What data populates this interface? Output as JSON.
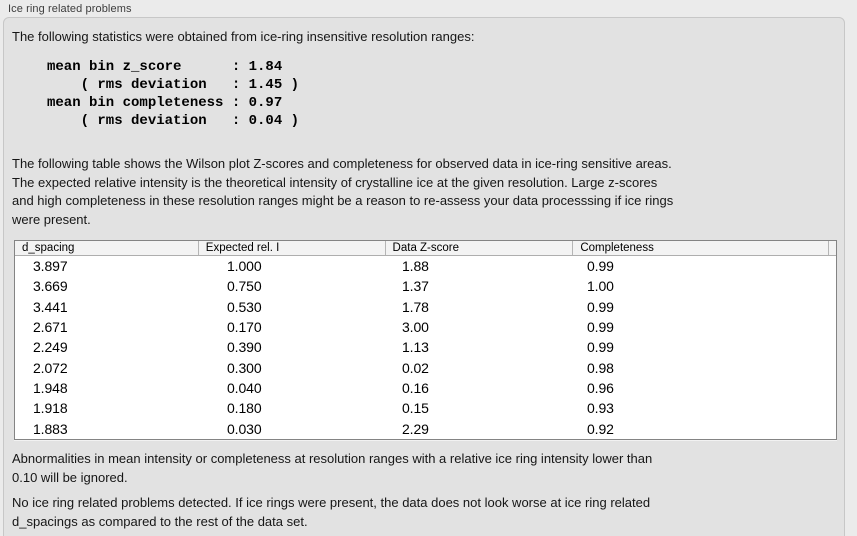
{
  "colors": {
    "outer_bg": "#ebebeb",
    "box_bg": "#e2e2e2",
    "box_border": "#c7c7c7",
    "text": "#161616",
    "title": "#3d3d3d",
    "table_bg": "#ffffff",
    "table_border": "#848484",
    "header_bg": "#f3f3f3",
    "header_divider": "#b5b5b5"
  },
  "panel": {
    "title": "Ice ring related problems"
  },
  "intro": {
    "text": "The following statistics were obtained from ice-ring insensitive resolution ranges:"
  },
  "stats": {
    "lines": "mean bin z_score      : 1.84\n    ( rms deviation   : 1.45 )\nmean bin completeness : 0.97\n    ( rms deviation   : 0.04 )"
  },
  "description": {
    "text": "The following table shows the Wilson plot Z-scores and completeness for observed data in ice-ring sensitive areas.\nThe expected relative intensity is the theoretical intensity of crystalline ice at the given resolution. Large z-scores\nand high completeness in these resolution ranges might be a reason to re-assess your data processsing if ice rings\nwere present."
  },
  "table": {
    "columns": [
      "d_spacing",
      "Expected rel. I",
      "Data Z-score",
      "Completeness"
    ],
    "rows": [
      [
        "3.897",
        "1.000",
        "1.88",
        "0.99"
      ],
      [
        "3.669",
        "0.750",
        "1.37",
        "1.00"
      ],
      [
        "3.441",
        "0.530",
        "1.78",
        "0.99"
      ],
      [
        "2.671",
        "0.170",
        "3.00",
        "0.99"
      ],
      [
        "2.249",
        "0.390",
        "1.13",
        "0.99"
      ],
      [
        "2.072",
        "0.300",
        "0.02",
        "0.98"
      ],
      [
        "1.948",
        "0.040",
        "0.16",
        "0.96"
      ],
      [
        "1.918",
        "0.180",
        "0.15",
        "0.93"
      ],
      [
        "1.883",
        "0.030",
        "2.29",
        "0.92"
      ]
    ]
  },
  "notes": {
    "ignore_note": "Abnormalities in mean intensity or completeness at resolution ranges with a relative ice ring intensity lower than\n0.10 will be ignored.",
    "conclusion": "No ice ring related problems detected. If ice rings were present, the data does not look worse at ice ring related\nd_spacings as compared to the rest of the data set."
  }
}
